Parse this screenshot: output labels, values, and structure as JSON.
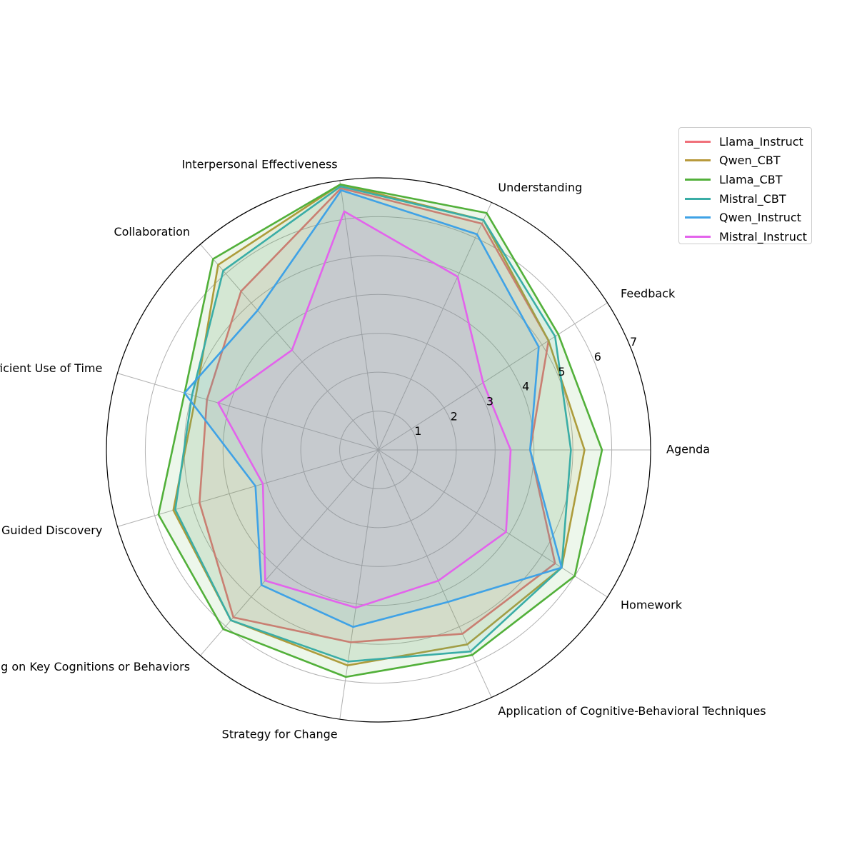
{
  "chart_data": {
    "type": "radar",
    "title": "",
    "categories": [
      "Agenda",
      "Feedback",
      "Understanding",
      "Interpersonal Effectiveness",
      "Collaboration",
      "Pacing and Efficient Use of Time",
      "Guided Discovery",
      "Focusing on Key Cognitions or Behaviors",
      "Strategy for Change",
      "Application of Cognitive-Behavioral Techniques",
      "Homework"
    ],
    "radial_ticks": [
      1,
      2,
      3,
      4,
      5,
      6,
      7
    ],
    "rlim": [
      0,
      7
    ],
    "grid": true,
    "legend_position": "upper-right, outside plot",
    "series": [
      {
        "name": "Llama_Instruct",
        "color": "#f0707a",
        "values": [
          3.9,
          5.2,
          6.4,
          6.8,
          5.4,
          4.6,
          4.8,
          5.7,
          5.0,
          5.2,
          5.4
        ]
      },
      {
        "name": "Qwen_CBT",
        "color": "#b89a3c",
        "values": [
          5.3,
          5.2,
          6.5,
          6.9,
          6.3,
          4.9,
          5.5,
          5.8,
          5.6,
          5.5,
          5.6
        ]
      },
      {
        "name": "Llama_CBT",
        "color": "#52b03a",
        "values": [
          5.75,
          5.5,
          6.7,
          6.9,
          6.5,
          5.2,
          5.9,
          6.1,
          5.9,
          5.8,
          6.0
        ]
      },
      {
        "name": "Mistral_CBT",
        "color": "#3aada6",
        "values": [
          4.95,
          5.4,
          6.5,
          6.85,
          6.1,
          5.0,
          5.45,
          5.8,
          5.5,
          5.7,
          5.6
        ]
      },
      {
        "name": "Qwen_Instruct",
        "color": "#3fa2e6",
        "values": [
          3.9,
          4.9,
          6.1,
          6.75,
          4.75,
          5.2,
          3.3,
          4.6,
          4.6,
          4.3,
          5.6
        ]
      },
      {
        "name": "Mistral_Instruct",
        "color": "#e363ec",
        "values": [
          3.4,
          3.2,
          4.9,
          6.2,
          3.4,
          4.3,
          3.1,
          4.45,
          4.1,
          3.7,
          3.9
        ]
      }
    ]
  }
}
